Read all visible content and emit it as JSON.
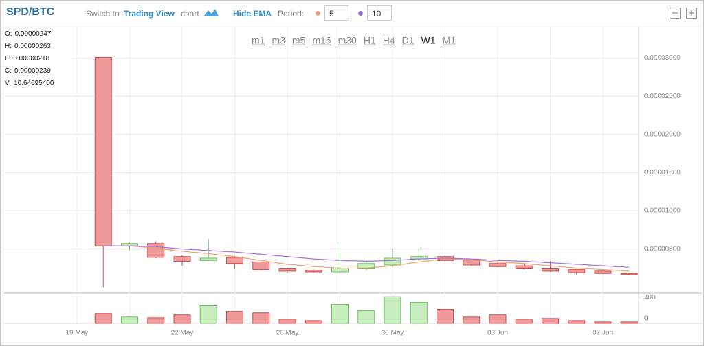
{
  "header": {
    "title": "SPD/BTC",
    "switch_prefix": "Switch to",
    "switch_link": "Trading View",
    "switch_suffix": "chart",
    "ema_toggle": "Hide EMA",
    "period_label": "Period:",
    "periods": [
      {
        "value": "5",
        "color": "#f0a070"
      },
      {
        "value": "10",
        "color": "#a070e0"
      }
    ]
  },
  "timeframes": [
    "m1",
    "m3",
    "m5",
    "m15",
    "m30",
    "H1",
    "H4",
    "D1",
    "W1",
    "M1"
  ],
  "active_timeframe": "W1",
  "ohlc_info": [
    {
      "label": "O:",
      "value": "0.00000247"
    },
    {
      "label": "H:",
      "value": "0.00000263"
    },
    {
      "label": "L:",
      "value": "0.00000218"
    },
    {
      "label": "C:",
      "value": "0.00000239"
    },
    {
      "label": "V:",
      "value": "10.64695400"
    }
  ],
  "chart_data": {
    "type": "candlestick",
    "categories": [
      "19 May",
      null,
      null,
      null,
      "22 May",
      null,
      null,
      null,
      "26 May",
      null,
      null,
      null,
      "30 May",
      null,
      null,
      null,
      "03 Jun",
      null,
      null,
      null,
      "07 Jun",
      null
    ],
    "open": [
      null,
      3.01e-05,
      5.4e-06,
      5.7e-06,
      4e-06,
      3.5e-06,
      3.9e-06,
      3.3e-06,
      2.4e-06,
      2.2e-06,
      2e-06,
      2.4e-06,
      2.9e-06,
      3.7e-06,
      4e-06,
      3.6e-06,
      3.1e-06,
      2.8e-06,
      2.4e-06,
      2.3e-06,
      2.1e-06,
      1.8e-06
    ],
    "high": [
      null,
      3.01e-05,
      5.8e-06,
      6e-06,
      4.2e-06,
      6.3e-06,
      4.1e-06,
      3.3e-06,
      2.5e-06,
      2.3e-06,
      5.6e-06,
      3.6e-06,
      5e-06,
      5e-06,
      4.1e-06,
      3.7e-06,
      3.4e-06,
      3.1e-06,
      3.4e-06,
      2.4e-06,
      2.1e-06,
      1.9e-06
    ],
    "low": [
      null,
      0,
      4.8e-06,
      3.8e-06,
      2.8e-06,
      3.4e-06,
      2.4e-06,
      2.2e-06,
      1.9e-06,
      1.9e-06,
      1.9e-06,
      2.2e-06,
      2.6e-06,
      3.6e-06,
      3.4e-06,
      2.8e-06,
      2.6e-06,
      2.3e-06,
      2e-06,
      1.7e-06,
      1.7e-06,
      1.6e-06
    ],
    "close": [
      null,
      5.4e-06,
      5.7e-06,
      3.9e-06,
      3.4e-06,
      3.8e-06,
      3.1e-06,
      2.3e-06,
      2.1e-06,
      2e-06,
      2.5e-06,
      3.1e-06,
      3.8e-06,
      4e-06,
      3.5e-06,
      2.9e-06,
      2.7e-06,
      2.4e-06,
      2.1e-06,
      1.9e-06,
      1.8e-06,
      1.7e-06
    ],
    "up_color": "#c8eec0",
    "up_stroke": "#6cc060",
    "down_color": "#ee9a9a",
    "down_stroke": "#d24848",
    "ema": [
      {
        "color": "#f0a070",
        "values": [
          null,
          5.4e-06,
          5.4e-06,
          5.1e-06,
          4.7e-06,
          4.4e-06,
          4e-06,
          3.5e-06,
          3e-06,
          2.7e-06,
          2.5e-06,
          2.5e-06,
          2.8e-06,
          3.3e-06,
          3.7e-06,
          3.6e-06,
          3.3e-06,
          3.1e-06,
          2.8e-06,
          2.5e-06,
          2.3e-06,
          2.1e-06
        ]
      },
      {
        "color": "#a070e0",
        "values": [
          null,
          5.4e-06,
          5.4e-06,
          5.3e-06,
          5e-06,
          4.8e-06,
          4.6e-06,
          4.3e-06,
          4e-06,
          3.7e-06,
          3.5e-06,
          3.4e-06,
          3.5e-06,
          3.7e-06,
          3.8e-06,
          3.7e-06,
          3.5e-06,
          3.4e-06,
          3.2e-06,
          3e-06,
          2.8e-06,
          2.6e-06
        ]
      }
    ],
    "volume": [
      null,
      151,
      97,
      86,
      130,
      270,
      184,
      162,
      65,
      43,
      292,
      195,
      411,
      324,
      216,
      97,
      130,
      65,
      76,
      43,
      22,
      22
    ],
    "ylim": [
      -7e-07,
      3.41e-05
    ],
    "yticks": [
      {
        "value": 5e-06,
        "label": "0.00000500"
      },
      {
        "value": 1e-05,
        "label": "0.00001000"
      },
      {
        "value": 1.5e-05,
        "label": "0.00001500"
      },
      {
        "value": 2e-05,
        "label": "0.00002000"
      },
      {
        "value": 2.5e-05,
        "label": "0.00002500"
      },
      {
        "value": 3e-05,
        "label": "0.00003000"
      }
    ],
    "volume_lim": [
      0,
      445
    ],
    "volume_ticks": [
      0,
      400
    ],
    "grid": true
  }
}
